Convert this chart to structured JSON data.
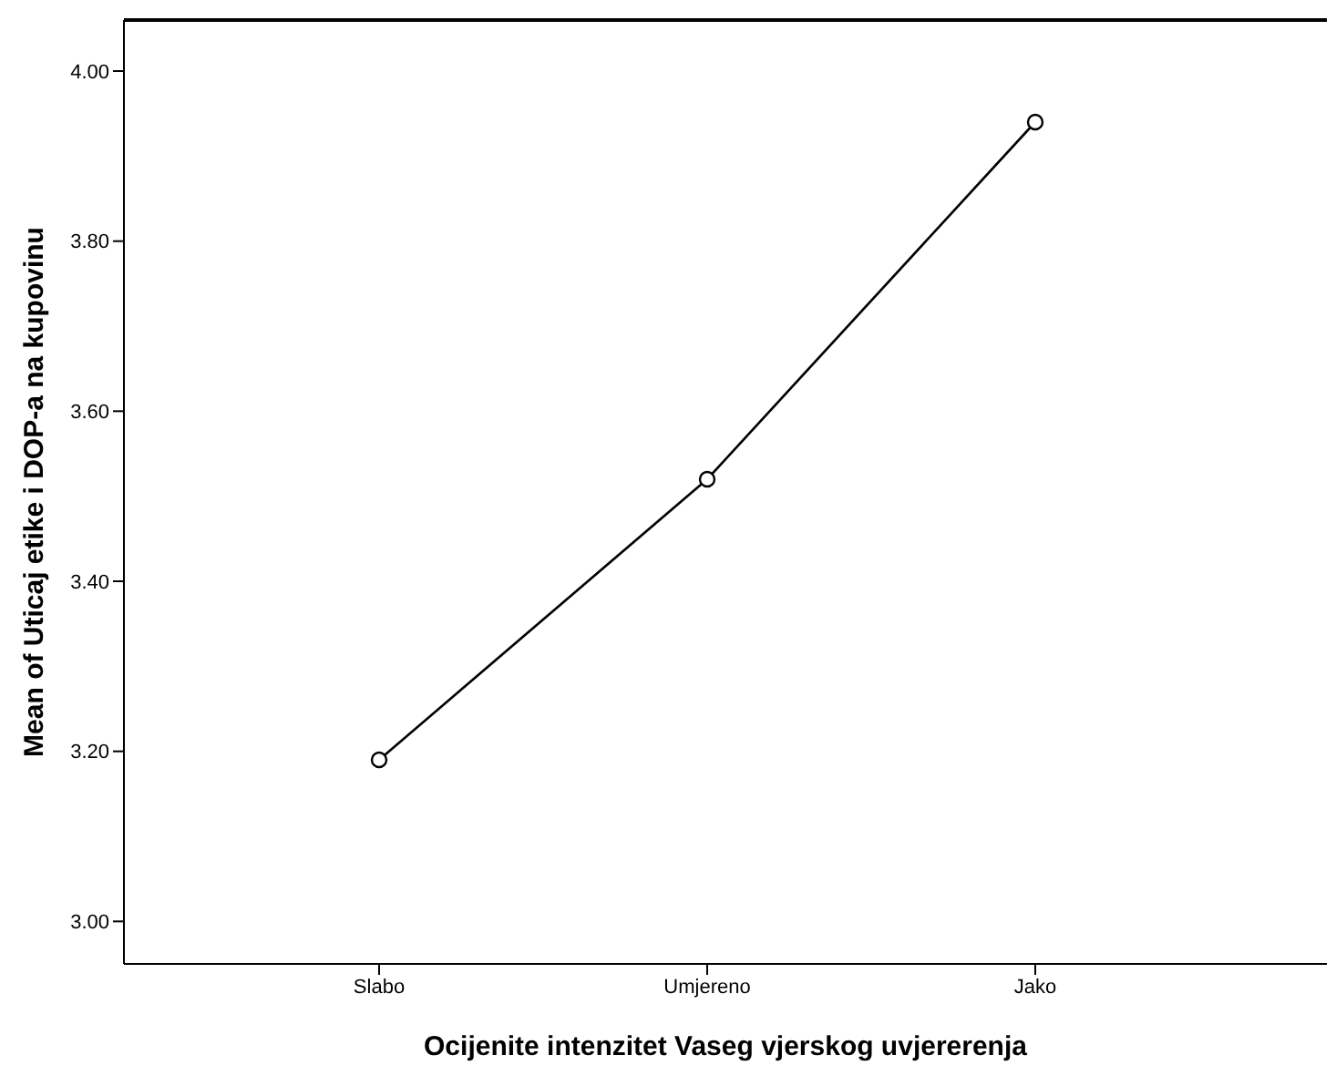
{
  "chart_data": {
    "type": "line",
    "xlabel": "Ocijenite intenzitet Vaseg vjerskog uvjererenja",
    "ylabel": "Mean of Uticaj etike i DOP-a na kupovinu",
    "categories": [
      "Slabo",
      "Umjereno",
      "Jako"
    ],
    "series": [
      {
        "color": "#000000",
        "values": [
          3.19,
          3.52,
          3.94
        ]
      }
    ],
    "ylim": [
      2.95,
      4.06
    ],
    "yticks": [
      {
        "value": 3,
        "label": "3.00"
      },
      {
        "value": 3.2,
        "label": "3.20"
      },
      {
        "value": 3.4,
        "label": "3.40"
      },
      {
        "value": 3.6,
        "label": "3.60"
      },
      {
        "value": 3.8,
        "label": "3.80"
      },
      {
        "value": 4,
        "label": "4.00"
      }
    ],
    "grid": false,
    "legend": false,
    "marker": "circle",
    "line_style": "solid"
  }
}
